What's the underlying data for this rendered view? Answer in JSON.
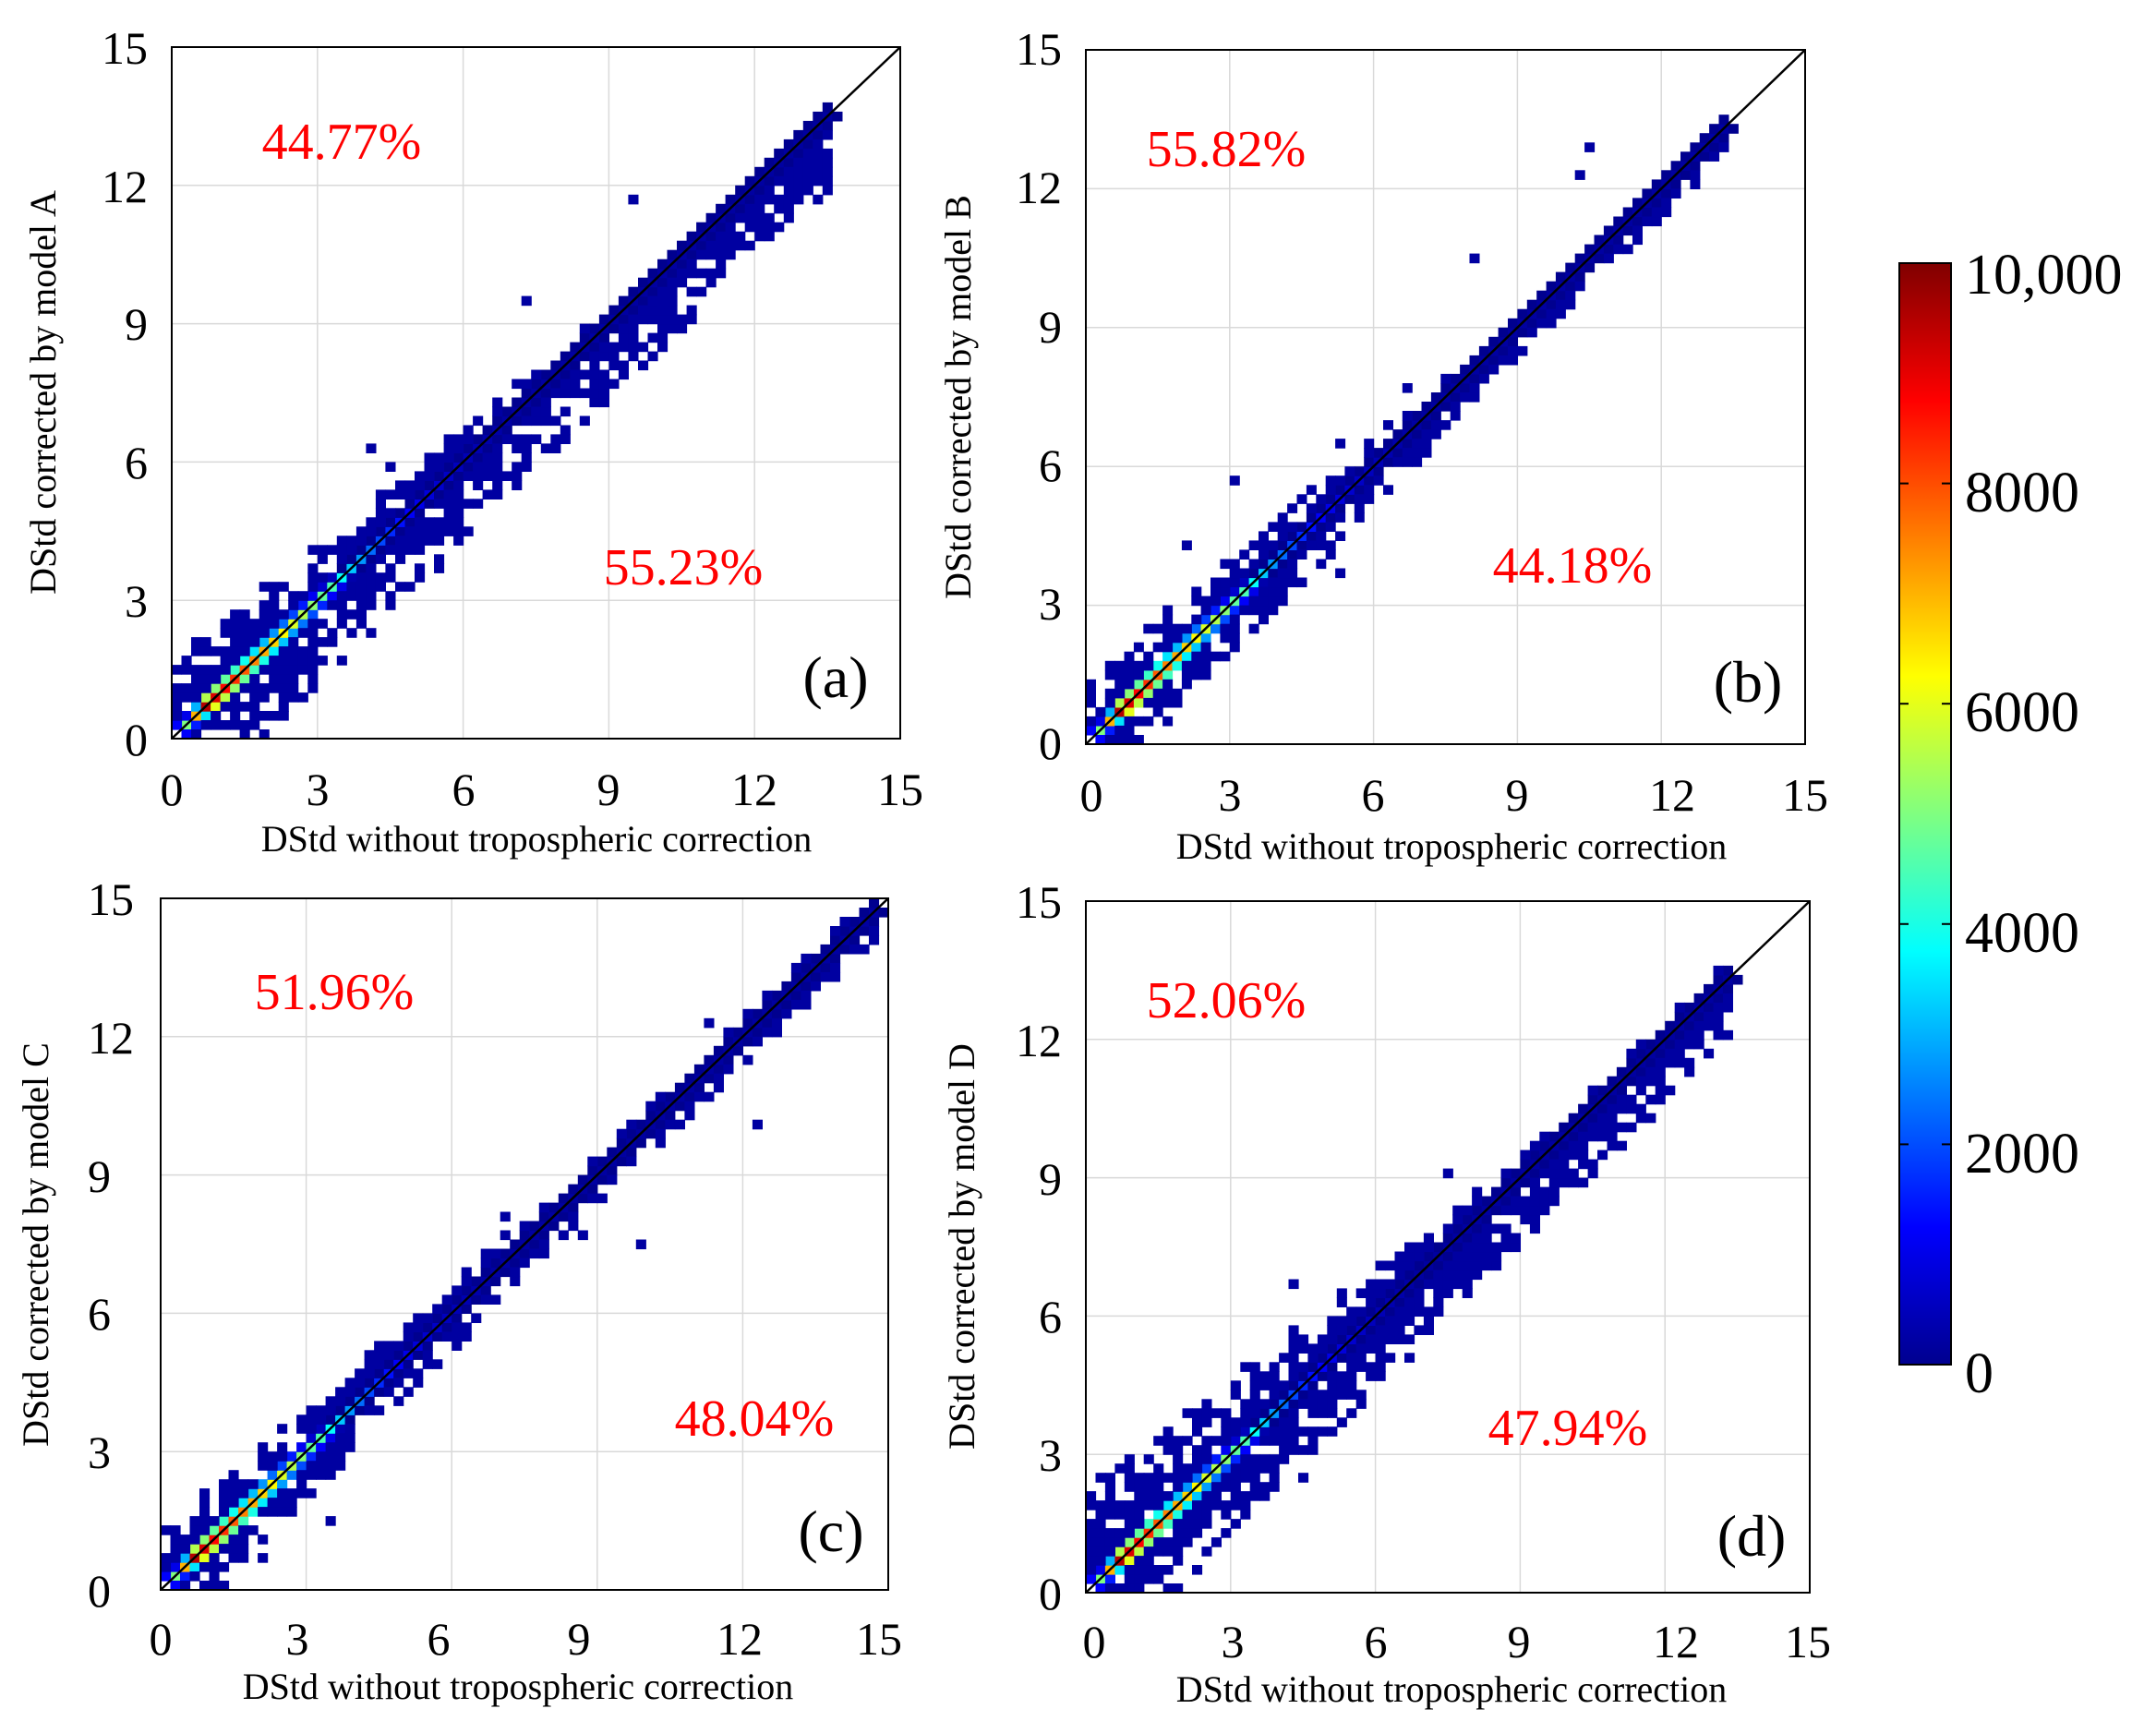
{
  "chart_data": [
    {
      "type": "heatmap",
      "panel_label": "(a)",
      "xlabel": "DStd without tropospheric correction",
      "ylabel": "DStd corrected by model A",
      "xlim": [
        0,
        15
      ],
      "ylim": [
        0,
        15
      ],
      "xticks": [
        "0",
        "3",
        "6",
        "9",
        "12",
        "15"
      ],
      "yticks": [
        "0",
        "3",
        "6",
        "9",
        "12",
        "15"
      ],
      "grid": true,
      "annotations": [
        {
          "text": "44.77%",
          "x": 3.5,
          "y": 13.0,
          "color": "#ff0000"
        },
        {
          "text": "55.23%",
          "x": 11.0,
          "y": 3.6,
          "color": "#ff0000"
        }
      ],
      "spread": {
        "low_lo": 2.0,
        "low_hi": 1.6,
        "high_lo": 1.5,
        "high_hi": 0.25,
        "extent": 13.4
      }
    },
    {
      "type": "heatmap",
      "panel_label": "(b)",
      "xlabel": "DStd without tropospheric correction",
      "ylabel": "DStd corrected by model B",
      "xlim": [
        0,
        15
      ],
      "ylim": [
        0,
        15
      ],
      "xticks": [
        "0",
        "3",
        "6",
        "9",
        "12",
        "15"
      ],
      "yticks": [
        "0",
        "3",
        "6",
        "9",
        "12",
        "15"
      ],
      "grid": true,
      "annotations": [
        {
          "text": "55.82%",
          "x": 3.0,
          "y": 12.9,
          "color": "#ff0000"
        },
        {
          "text": "44.18%",
          "x": 10.8,
          "y": 3.8,
          "color": "#ff0000"
        }
      ],
      "spread": {
        "low_lo": 1.3,
        "low_hi": 1.3,
        "high_lo": 0.6,
        "high_hi": 0.2,
        "extent": 13.3
      }
    },
    {
      "type": "heatmap",
      "panel_label": "(c)",
      "xlabel": "DStd without tropospheric correction",
      "ylabel": "DStd corrected by model C",
      "xlim": [
        0,
        15
      ],
      "ylim": [
        0,
        15
      ],
      "xticks": [
        "0",
        "3",
        "6",
        "9",
        "12",
        "15"
      ],
      "yticks": [
        "0",
        "3",
        "6",
        "9",
        "12",
        "15"
      ],
      "grid": true,
      "annotations": [
        {
          "text": "51.96%",
          "x": 3.7,
          "y": 12.8,
          "color": "#ff0000"
        },
        {
          "text": "48.04%",
          "x": 12.3,
          "y": 3.6,
          "color": "#ff0000"
        }
      ],
      "spread": {
        "low_lo": 1.2,
        "low_hi": 1.2,
        "high_lo": 0.5,
        "high_hi": 0.3,
        "extent": 14.7
      }
    },
    {
      "type": "heatmap",
      "panel_label": "(d)",
      "xlabel": "DStd without tropospheric correction",
      "ylabel": "DStd corrected by model D",
      "xlim": [
        0,
        15
      ],
      "ylim": [
        0,
        15
      ],
      "xticks": [
        "0",
        "3",
        "6",
        "9",
        "12",
        "15"
      ],
      "yticks": [
        "0",
        "3",
        "6",
        "9",
        "12",
        "15"
      ],
      "grid": true,
      "annotations": [
        {
          "text": "52.06%",
          "x": 3.0,
          "y": 12.9,
          "color": "#ff0000"
        },
        {
          "text": "47.94%",
          "x": 10.8,
          "y": 3.6,
          "color": "#ff0000"
        }
      ],
      "spread": {
        "low_lo": 1.8,
        "low_hi": 2.2,
        "high_lo": 1.4,
        "high_hi": 0.3,
        "extent": 13.3
      }
    }
  ],
  "colorbar": {
    "ticks": [
      {
        "value": 0,
        "label": "0"
      },
      {
        "value": 2000,
        "label": "2000"
      },
      {
        "value": 4000,
        "label": "4000"
      },
      {
        "value": 6000,
        "label": "6000"
      },
      {
        "value": 8000,
        "label": "8000"
      },
      {
        "value": 10000,
        "label": "10,000"
      }
    ],
    "range": [
      0,
      10000
    ],
    "colormap": "jet"
  },
  "colors": {
    "annotation": "#ff0000",
    "diagonal": "#000000",
    "grid": "#d9d9d9"
  }
}
